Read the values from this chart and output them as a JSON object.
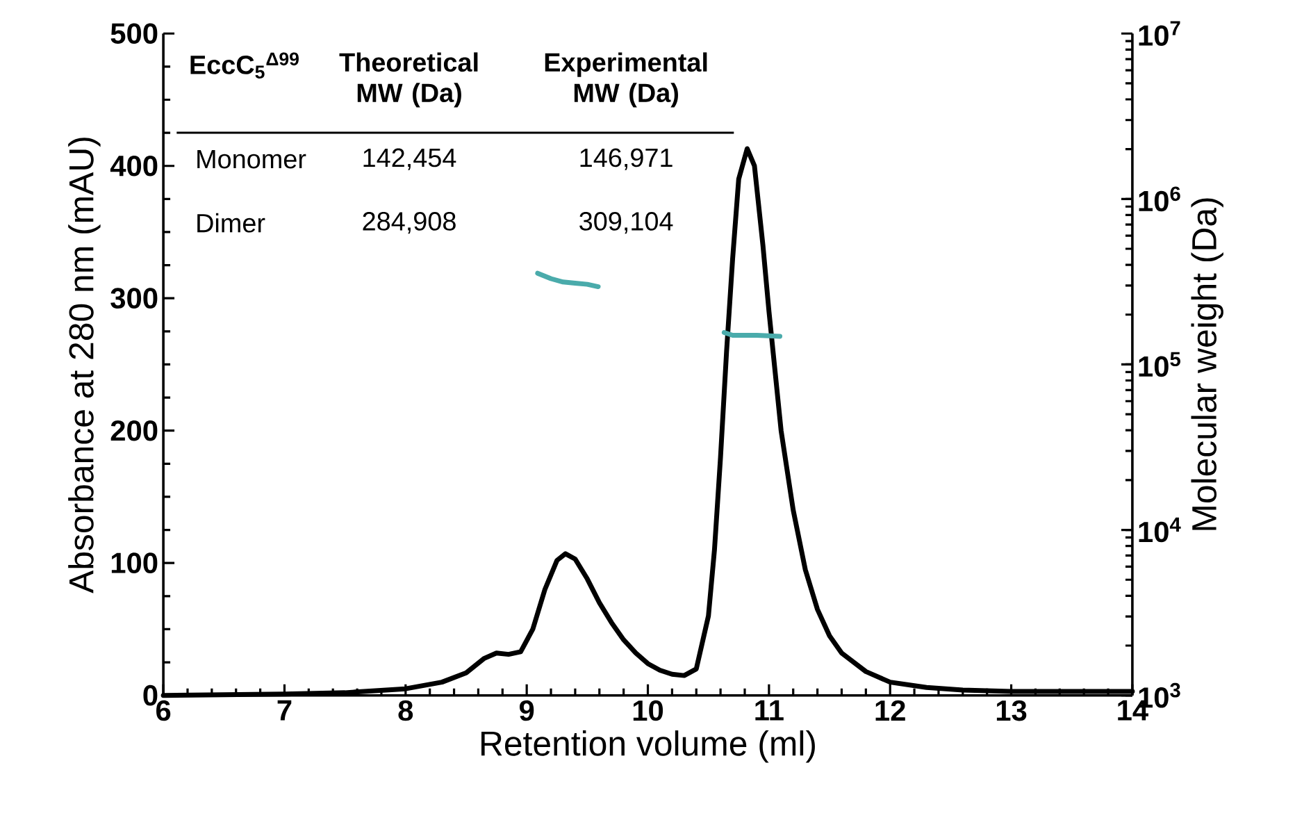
{
  "chart_data": {
    "type": "line",
    "xlabel": "Retention volume (ml)",
    "ylabel": "Absorbance at 280 nm (mAU)",
    "y2label": "Molecular weight (Da)",
    "xlim": [
      6,
      14
    ],
    "xticks": [
      6,
      7,
      8,
      9,
      10,
      11,
      12,
      13,
      14
    ],
    "ylim": [
      0,
      500
    ],
    "yticks": [
      0,
      100,
      200,
      300,
      400,
      500
    ],
    "y2lim": [
      1000,
      10000000
    ],
    "y2ticks": [
      {
        "value": 1000,
        "label": "10$^{3}$"
      },
      {
        "value": 10000,
        "label": "10$^{4}$"
      },
      {
        "value": 100000,
        "label": "10$^{5}$"
      },
      {
        "value": 1000000,
        "label": "10$^{6}$"
      },
      {
        "value": 10000000,
        "label": "10$^{7}$"
      }
    ],
    "log": "y2",
    "grid": false,
    "annotations": [
      "EccC$_{5}$$^{Δ99}$",
      "Theoretical MW (Da)",
      "Experimental MW (Da)",
      "Monomer",
      "142,454",
      "146,971",
      "Dimer",
      "284,908",
      "309,104"
    ],
    "series": [
      {
        "color": "#000000",
        "x": [
          6,
          7,
          7.5,
          8,
          8.3,
          8.5,
          8.65,
          8.75,
          8.85,
          8.95,
          9.05,
          9.15,
          9.25,
          9.32,
          9.4,
          9.5,
          9.6,
          9.7,
          9.8,
          9.9,
          10.0,
          10.1,
          10.2,
          10.3,
          10.4,
          10.5,
          10.55,
          10.6,
          10.65,
          10.7,
          10.75,
          10.82,
          10.88,
          10.95,
          11.0,
          11.1,
          11.2,
          11.3,
          11.4,
          11.5,
          11.6,
          11.8,
          12.0,
          12.3,
          12.6,
          13,
          14
        ],
        "values": [
          0,
          1,
          2,
          5,
          10,
          17,
          28,
          32,
          31,
          33,
          50,
          80,
          102,
          107,
          103,
          88,
          70,
          55,
          42,
          32,
          24,
          19,
          16,
          15,
          20,
          60,
          110,
          180,
          260,
          330,
          390,
          413,
          400,
          340,
          290,
          200,
          140,
          95,
          65,
          45,
          32,
          18,
          10,
          6,
          4,
          3,
          3
        ]
      },
      {
        "color": "#4aabab",
        "axis": "y2",
        "x": [
          9.09,
          9.2,
          9.3,
          9.4,
          9.5,
          9.59
        ],
        "values": [
          356000,
          330000,
          315000,
          310000,
          305000,
          295000
        ]
      },
      {
        "color": "#4aabab",
        "axis": "y2",
        "x": [
          10.63,
          10.7,
          10.8,
          10.9,
          11.0,
          11.09
        ],
        "values": [
          156000,
          150000,
          150000,
          150000,
          149000,
          148000
        ]
      }
    ]
  }
}
